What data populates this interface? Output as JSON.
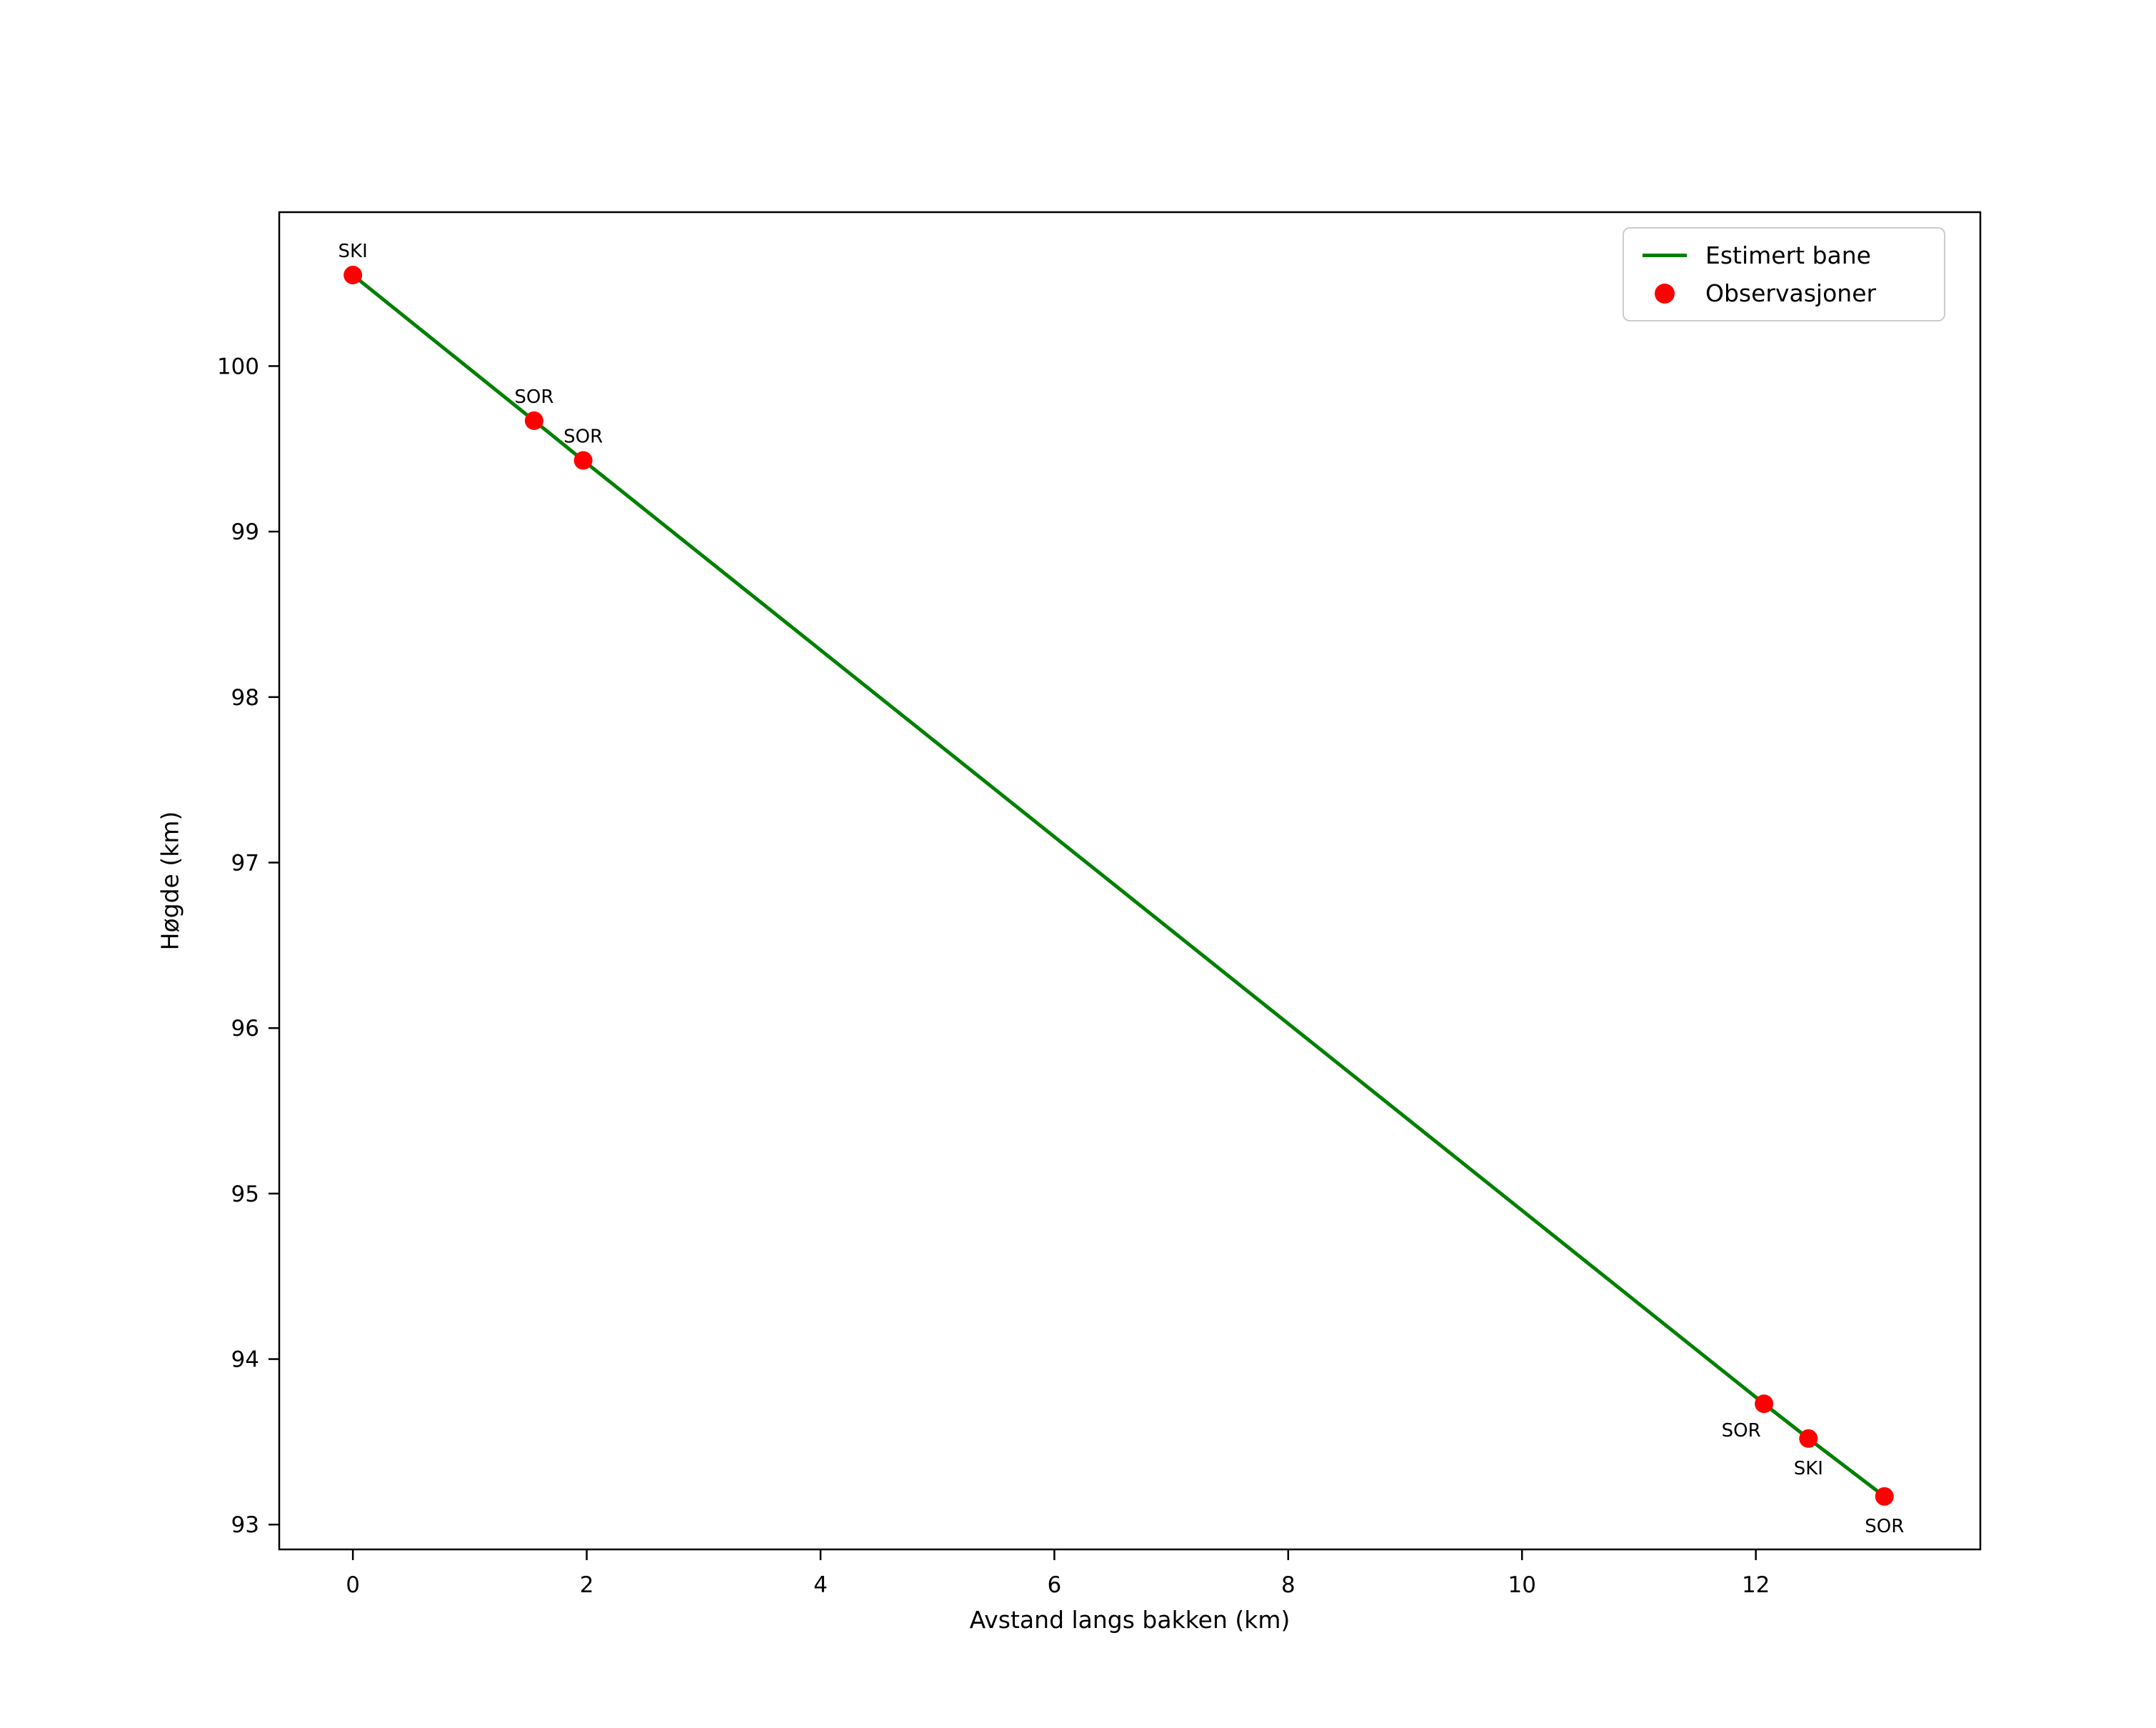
{
  "figure": {
    "background": "#ffffff"
  },
  "chart_data": {
    "type": "line",
    "title": "",
    "xlabel": "Avstand langs bakken (km)",
    "ylabel": "Høgde (km)",
    "xlim": [
      -0.63,
      13.92
    ],
    "ylim": [
      92.85,
      100.93
    ],
    "x_ticks": [
      0,
      2,
      4,
      6,
      8,
      10,
      12
    ],
    "y_ticks": [
      93,
      94,
      95,
      96,
      97,
      98,
      99,
      100
    ],
    "grid": false,
    "legend_position": "upper right",
    "series": [
      {
        "name": "Estimert bane",
        "type": "line",
        "color": "#008000",
        "points": [
          [
            0,
            100.55
          ],
          [
            1.55,
            99.67
          ],
          [
            1.97,
            99.43
          ],
          [
            12.07,
            93.73
          ],
          [
            12.45,
            93.52
          ],
          [
            13.1,
            93.17
          ]
        ]
      },
      {
        "name": "Observasjoner",
        "type": "scatter",
        "color": "#ff0000",
        "points": [
          [
            0,
            100.55
          ],
          [
            1.55,
            99.67
          ],
          [
            1.97,
            99.43
          ],
          [
            12.07,
            93.73
          ],
          [
            12.45,
            93.52
          ],
          [
            13.1,
            93.17
          ]
        ]
      }
    ],
    "annotations": [
      {
        "label": "SKI",
        "x": 0,
        "y": 100.55,
        "placement": "above"
      },
      {
        "label": "SOR",
        "x": 1.55,
        "y": 99.67,
        "placement": "above"
      },
      {
        "label": "SOR",
        "x": 1.97,
        "y": 99.43,
        "placement": "above"
      },
      {
        "label": "SOR",
        "x": 12.07,
        "y": 93.73,
        "placement": "below-left"
      },
      {
        "label": "SKI",
        "x": 12.45,
        "y": 93.52,
        "placement": "below"
      },
      {
        "label": "SOR",
        "x": 13.1,
        "y": 93.17,
        "placement": "below"
      }
    ],
    "legend": {
      "items": [
        {
          "label": "Estimert bane",
          "marker": "line",
          "color": "#008000"
        },
        {
          "label": "Observasjoner",
          "marker": "dot",
          "color": "#ff0000"
        }
      ]
    }
  }
}
